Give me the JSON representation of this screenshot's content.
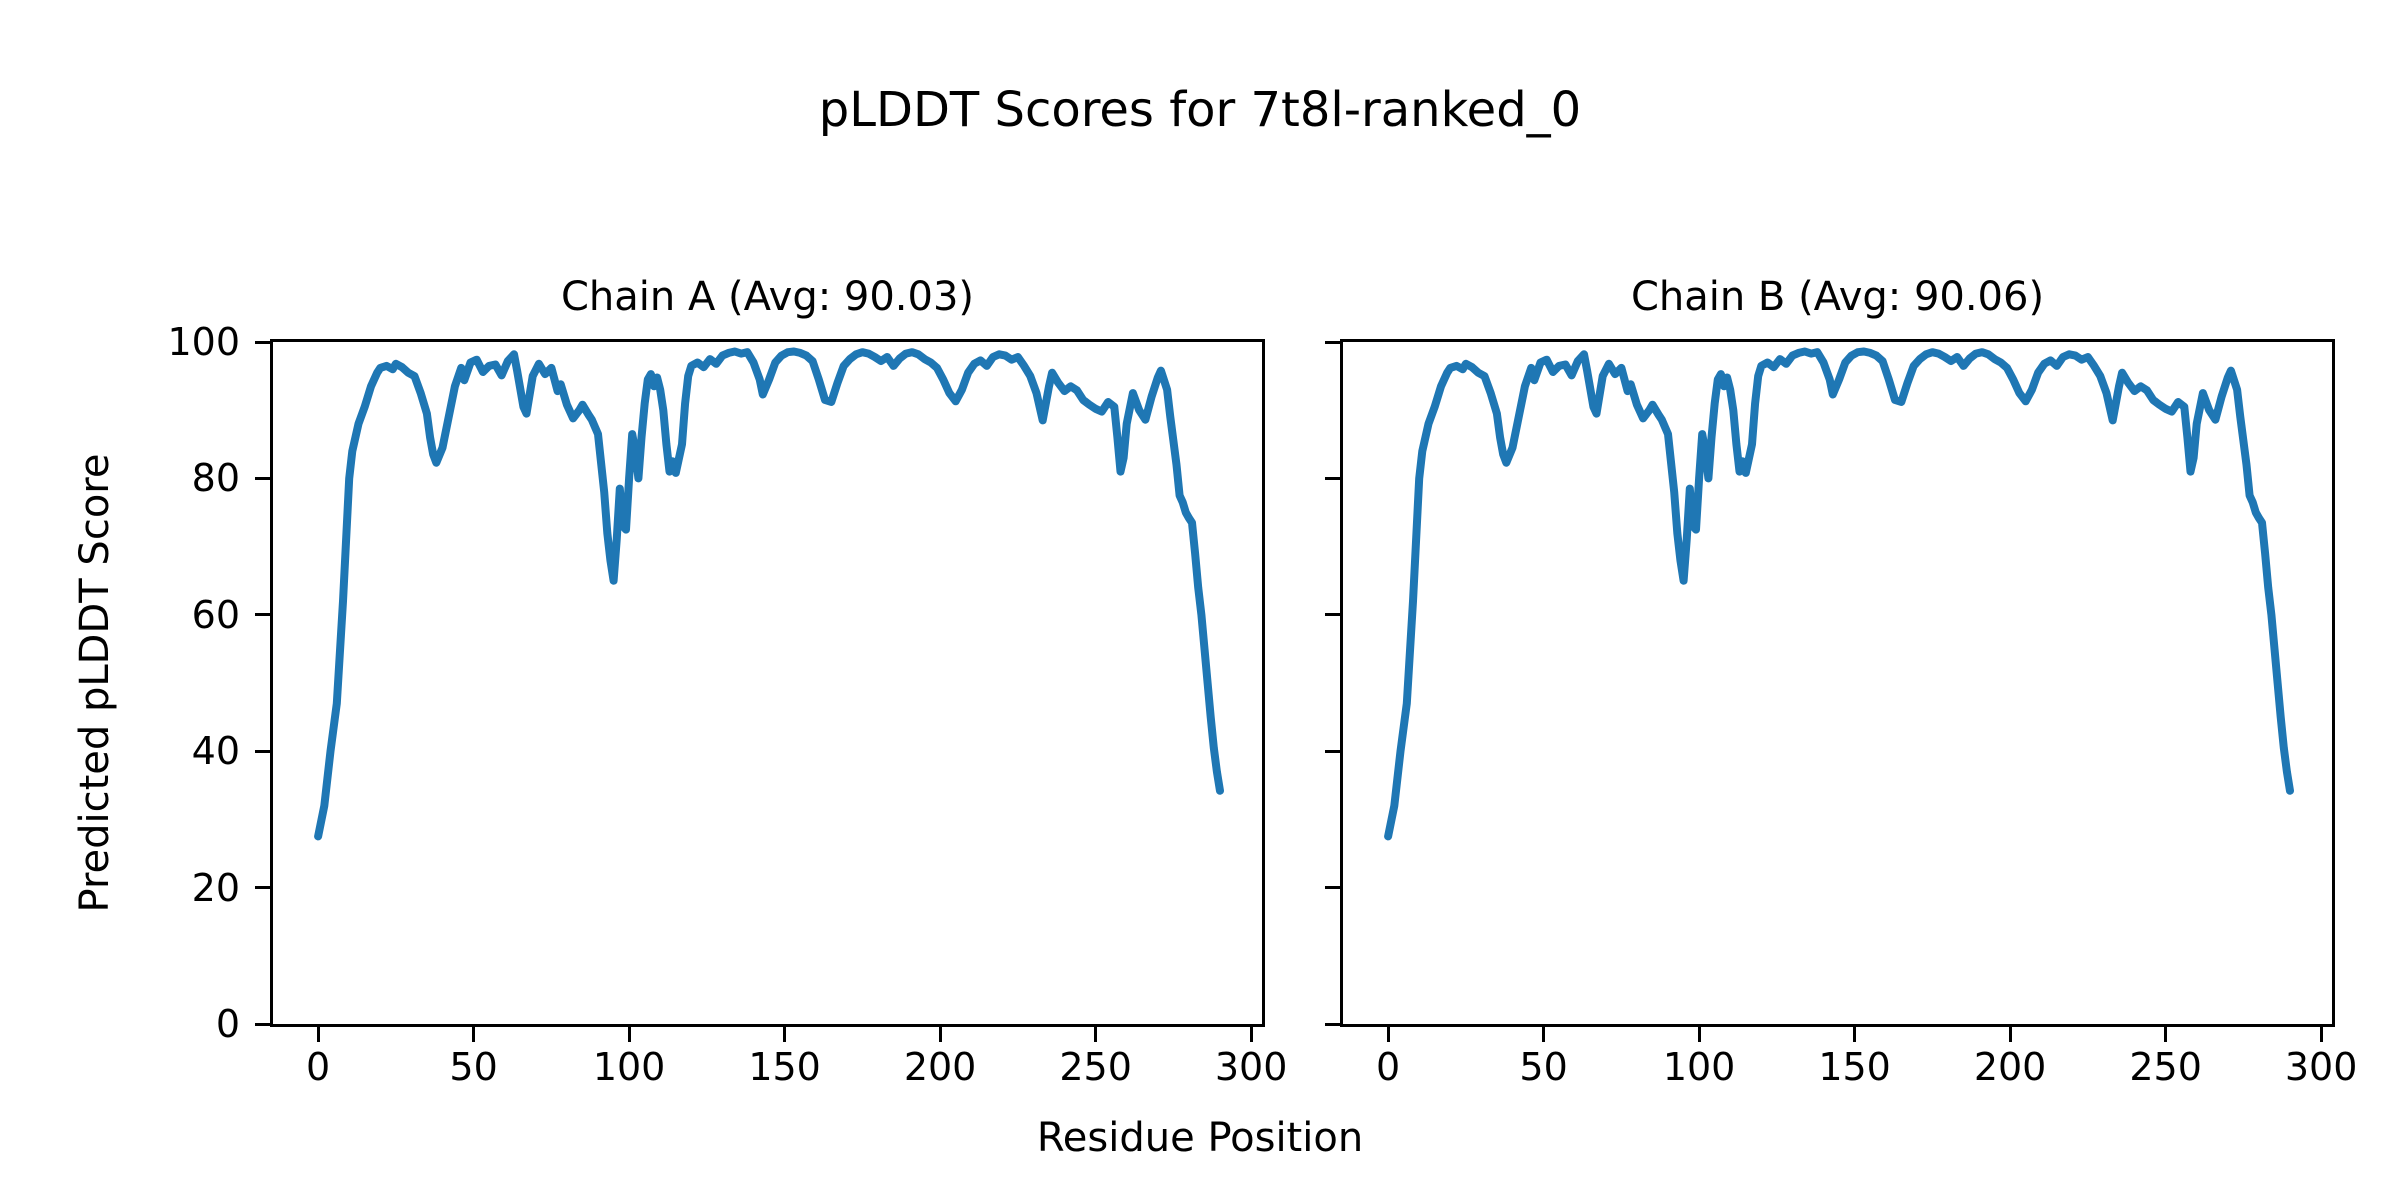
{
  "figure": {
    "title": "pLDDT Scores for 7t8l-ranked_0",
    "xlabel": "Residue Position",
    "ylabel": "Predicted pLDDT Score",
    "background_color": "#ffffff",
    "text_color": "#000000",
    "line_color": "#1f77b4"
  },
  "chart_data": [
    {
      "type": "line",
      "title": "Chain A (Avg: 90.03)",
      "average_plddt": 90.03,
      "xlim": [
        -14.5,
        303.5
      ],
      "ylim": [
        0,
        100
      ],
      "xticks": [
        0,
        50,
        100,
        150,
        200,
        250,
        300
      ],
      "yticks": [
        0,
        20,
        40,
        60,
        80,
        100
      ],
      "show_ytick_labels": true,
      "grid": false,
      "legend_position": "none",
      "series": [
        {
          "name": "pLDDT",
          "x": [
            0,
            2,
            4,
            6,
            8,
            10,
            11,
            13,
            15,
            17,
            19,
            20,
            22,
            24,
            25,
            27,
            29,
            31,
            33,
            35,
            36,
            37,
            38,
            40,
            42,
            44,
            46,
            47,
            49,
            51,
            53,
            55,
            57,
            59,
            61,
            63,
            64,
            66,
            67,
            69,
            71,
            73,
            75,
            77,
            78,
            80,
            82,
            84,
            85,
            87,
            88,
            90,
            92,
            93,
            94,
            95,
            96,
            97,
            98,
            99,
            100,
            101,
            102,
            103,
            104,
            105,
            106,
            107,
            108,
            109,
            110,
            111,
            112,
            113,
            114,
            115,
            117,
            118,
            119,
            120,
            122,
            124,
            126,
            128,
            130,
            132,
            134,
            136,
            138,
            140,
            142,
            143,
            145,
            147,
            149,
            151,
            153,
            155,
            157,
            159,
            161,
            163,
            165,
            167,
            169,
            171,
            173,
            175,
            177,
            179,
            181,
            183,
            185,
            187,
            189,
            191,
            193,
            195,
            197,
            199,
            201,
            203,
            205,
            207,
            209,
            211,
            213,
            215,
            217,
            219,
            221,
            223,
            225,
            227,
            229,
            231,
            233,
            235,
            236,
            238,
            240,
            242,
            244,
            246,
            248,
            250,
            252,
            254,
            256,
            257,
            258,
            259,
            260,
            262,
            264,
            266,
            268,
            270,
            271,
            273,
            274,
            275,
            276,
            277,
            278,
            279,
            280,
            281,
            282,
            283,
            284,
            285,
            286,
            287,
            288,
            289,
            290
          ],
          "y": [
            27.5,
            32,
            40,
            47,
            62,
            80,
            84,
            88,
            90.5,
            93.5,
            95.5,
            96.2,
            96.5,
            96,
            96.8,
            96.3,
            95.5,
            95,
            92.5,
            89.5,
            86,
            83.5,
            82.3,
            84.5,
            89,
            93.5,
            96.2,
            94.4,
            97,
            97.4,
            95.6,
            96.5,
            96.7,
            95.1,
            97.2,
            98.2,
            95.8,
            90.5,
            89.5,
            95,
            96.8,
            95.3,
            96.2,
            92.8,
            93.8,
            90.8,
            88.8,
            90,
            90.8,
            89.3,
            88.6,
            86.5,
            78,
            72,
            68,
            65,
            71,
            78.5,
            73,
            72.5,
            80,
            86.5,
            84,
            80,
            86,
            91,
            94.5,
            95.3,
            93.5,
            94.8,
            93,
            90,
            85,
            81,
            82.5,
            80.8,
            85,
            91,
            95,
            96.5,
            97,
            96.3,
            97.5,
            96.8,
            98,
            98.4,
            98.6,
            98.3,
            98.5,
            97,
            94.5,
            92.3,
            94.5,
            97,
            98,
            98.5,
            98.6,
            98.4,
            98,
            97.2,
            94.5,
            91.5,
            91.2,
            94,
            96.5,
            97.5,
            98.2,
            98.5,
            98.3,
            97.8,
            97.2,
            97.8,
            96.5,
            97.6,
            98.3,
            98.5,
            98.2,
            97.5,
            97,
            96.2,
            94.5,
            92.5,
            91.3,
            93,
            95.5,
            96.8,
            97.3,
            96.5,
            97.8,
            98.2,
            98,
            97.4,
            97.8,
            96.5,
            95,
            92.5,
            88.5,
            93.5,
            95.5,
            94,
            92.8,
            93.5,
            92.9,
            91.5,
            90.8,
            90.2,
            89.8,
            91.2,
            90.5,
            86,
            81,
            83,
            88,
            92.5,
            90,
            88.6,
            92,
            94.8,
            95.8,
            93,
            89,
            85.5,
            82,
            77.5,
            76.5,
            75,
            74.2,
            73.5,
            69,
            64,
            60,
            55,
            50,
            45,
            40.5,
            37,
            34.2
          ]
        }
      ]
    },
    {
      "type": "line",
      "title": "Chain B (Avg: 90.06)",
      "average_plddt": 90.06,
      "xlim": [
        -14.5,
        303.5
      ],
      "ylim": [
        0,
        100
      ],
      "xticks": [
        0,
        50,
        100,
        150,
        200,
        250,
        300
      ],
      "yticks": [
        0,
        20,
        40,
        60,
        80,
        100
      ],
      "show_ytick_labels": false,
      "grid": false,
      "legend_position": "none",
      "series": [
        {
          "name": "pLDDT",
          "x": [
            0,
            2,
            4,
            6,
            8,
            10,
            11,
            13,
            15,
            17,
            19,
            20,
            22,
            24,
            25,
            27,
            29,
            31,
            33,
            35,
            36,
            37,
            38,
            40,
            42,
            44,
            46,
            47,
            49,
            51,
            53,
            55,
            57,
            59,
            61,
            63,
            64,
            66,
            67,
            69,
            71,
            73,
            75,
            77,
            78,
            80,
            82,
            84,
            85,
            87,
            88,
            90,
            92,
            93,
            94,
            95,
            96,
            97,
            98,
            99,
            100,
            101,
            102,
            103,
            104,
            105,
            106,
            107,
            108,
            109,
            110,
            111,
            112,
            113,
            114,
            115,
            117,
            118,
            119,
            120,
            122,
            124,
            126,
            128,
            130,
            132,
            134,
            136,
            138,
            140,
            142,
            143,
            145,
            147,
            149,
            151,
            153,
            155,
            157,
            159,
            161,
            163,
            165,
            167,
            169,
            171,
            173,
            175,
            177,
            179,
            181,
            183,
            185,
            187,
            189,
            191,
            193,
            195,
            197,
            199,
            201,
            203,
            205,
            207,
            209,
            211,
            213,
            215,
            217,
            219,
            221,
            223,
            225,
            227,
            229,
            231,
            233,
            235,
            236,
            238,
            240,
            242,
            244,
            246,
            248,
            250,
            252,
            254,
            256,
            257,
            258,
            259,
            260,
            262,
            264,
            266,
            268,
            270,
            271,
            273,
            274,
            275,
            276,
            277,
            278,
            279,
            280,
            281,
            282,
            283,
            284,
            285,
            286,
            287,
            288,
            289,
            290
          ],
          "y": [
            27.5,
            32,
            40,
            47,
            62,
            80,
            84,
            88,
            90.5,
            93.5,
            95.5,
            96.2,
            96.5,
            96,
            96.8,
            96.3,
            95.5,
            95,
            92.5,
            89.5,
            86,
            83.5,
            82.3,
            84.5,
            89,
            93.5,
            96.2,
            94.4,
            97,
            97.4,
            95.6,
            96.5,
            96.7,
            95.1,
            97.2,
            98.2,
            95.8,
            90.5,
            89.5,
            95,
            96.8,
            95.3,
            96.2,
            92.8,
            93.8,
            90.8,
            88.8,
            90,
            90.8,
            89.3,
            88.6,
            86.5,
            78,
            72,
            68,
            65,
            71,
            78.5,
            73,
            72.5,
            80,
            86.5,
            84,
            80,
            86,
            91,
            94.5,
            95.3,
            93.5,
            94.8,
            93,
            90,
            85,
            81,
            82.5,
            80.8,
            85,
            91,
            95,
            96.5,
            97,
            96.3,
            97.5,
            96.8,
            98,
            98.4,
            98.6,
            98.3,
            98.5,
            97,
            94.5,
            92.3,
            94.5,
            97,
            98,
            98.5,
            98.6,
            98.4,
            98,
            97.2,
            94.5,
            91.5,
            91.2,
            94,
            96.5,
            97.5,
            98.2,
            98.5,
            98.3,
            97.8,
            97.2,
            97.8,
            96.5,
            97.6,
            98.3,
            98.5,
            98.2,
            97.5,
            97,
            96.2,
            94.5,
            92.5,
            91.3,
            93,
            95.5,
            96.8,
            97.3,
            96.5,
            97.8,
            98.2,
            98,
            97.4,
            97.8,
            96.5,
            95,
            92.5,
            88.5,
            93.5,
            95.5,
            94,
            92.8,
            93.5,
            92.9,
            91.5,
            90.8,
            90.2,
            89.8,
            91.2,
            90.5,
            86,
            81,
            83,
            88,
            92.5,
            90,
            88.6,
            92,
            94.8,
            95.8,
            93,
            89,
            85.5,
            82,
            77.5,
            76.5,
            75,
            74.2,
            73.5,
            69,
            64,
            60,
            55,
            50,
            45,
            40.5,
            37,
            34.2
          ]
        }
      ]
    }
  ]
}
